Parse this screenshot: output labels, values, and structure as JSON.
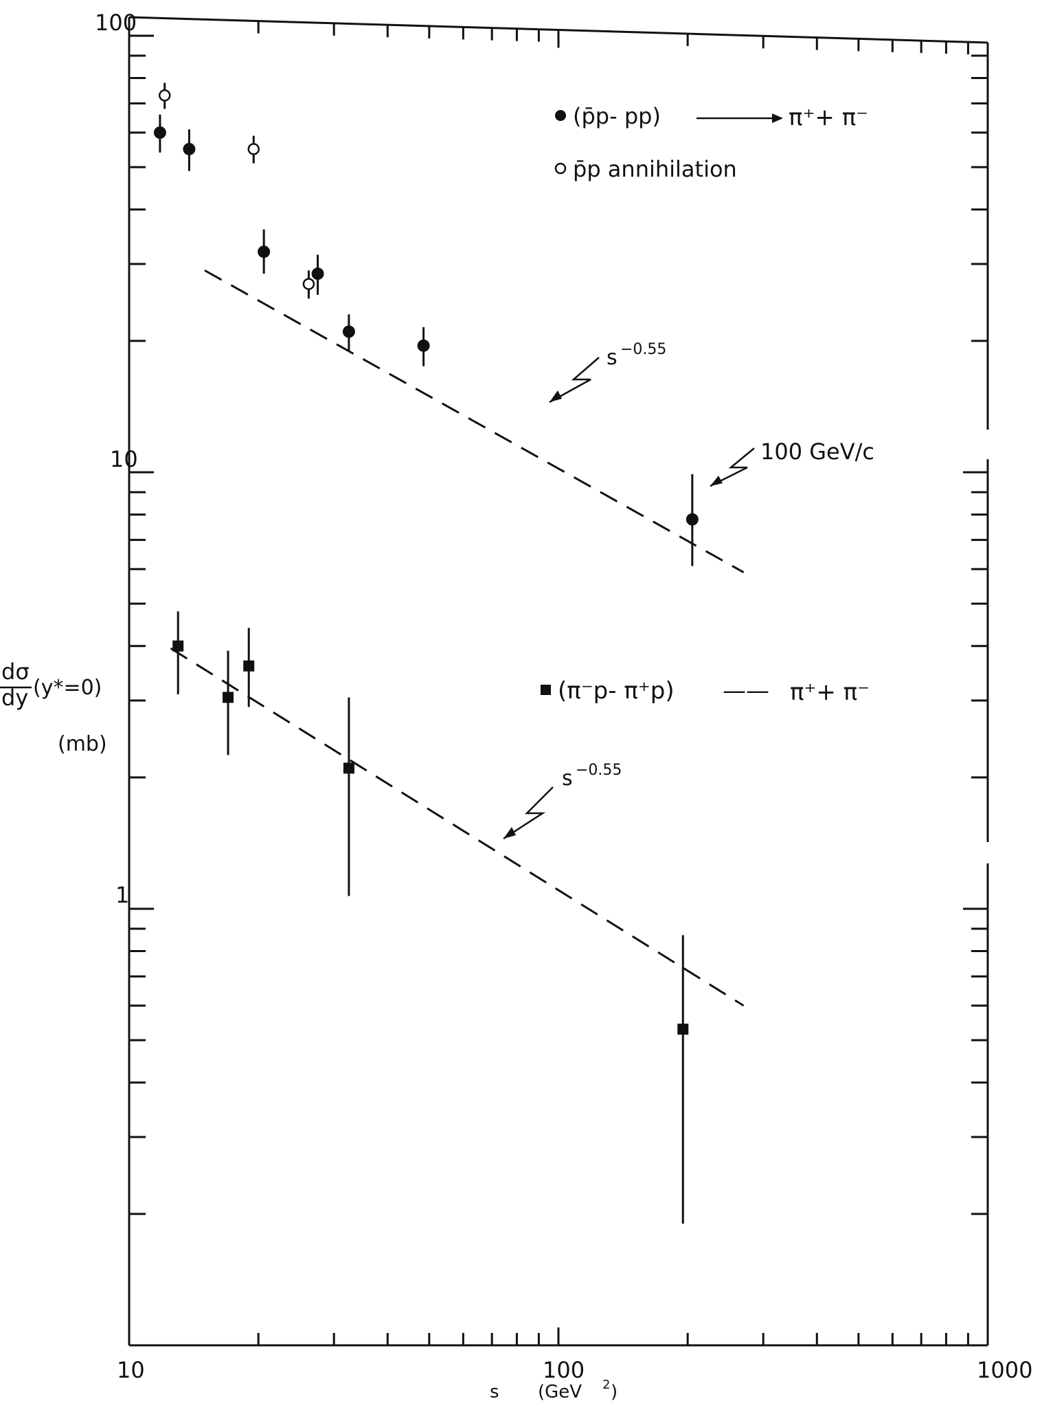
{
  "chart_data": {
    "type": "scatter",
    "xscale": "log",
    "yscale": "log",
    "xlim": [
      10,
      1000
    ],
    "ylim": [
      0.1,
      100
    ],
    "x_ticks": [
      "10",
      "100",
      "1000"
    ],
    "y_ticks": [
      "1",
      "10",
      "100"
    ],
    "xlabel": {
      "var": "s",
      "unit": "(GeV",
      "sup": "2",
      "close": ")"
    },
    "ylabel": {
      "num": "dσ",
      "den": "dy",
      "arg": "(y*=0)",
      "unit": "(mb)"
    },
    "colors": {
      "ink": "#111111",
      "background": "#ffffff"
    },
    "series": [
      {
        "name": "(p̄p- pp) ⟶ π⁺+ π⁻",
        "marker": "filled-circle",
        "points": [
          {
            "x": 11.8,
            "y": 60,
            "err": [
              54,
              66
            ]
          },
          {
            "x": 13.8,
            "y": 55,
            "err": [
              49,
              61
            ]
          },
          {
            "x": 20.6,
            "y": 32,
            "err": [
              28.5,
              36
            ]
          },
          {
            "x": 27.5,
            "y": 28.5,
            "err": [
              25.5,
              31.5
            ]
          },
          {
            "x": 32.5,
            "y": 21,
            "err": [
              19,
              23
            ]
          },
          {
            "x": 48.5,
            "y": 19.5,
            "err": [
              17.5,
              21.5
            ]
          },
          {
            "x": 205,
            "y": 7.8,
            "err": [
              6.1,
              9.9
            ]
          }
        ]
      },
      {
        "name": "p̄p  annihilation",
        "marker": "open-circle",
        "points": [
          {
            "x": 12.1,
            "y": 73,
            "err": [
              68,
              78
            ]
          },
          {
            "x": 19.5,
            "y": 55,
            "err": [
              51,
              59
            ]
          },
          {
            "x": 26.2,
            "y": 27,
            "err": [
              25,
              29
            ]
          }
        ]
      },
      {
        "name": "(π⁻p- π⁺p) ⟶ π⁺+ π⁻",
        "marker": "filled-square",
        "points": [
          {
            "x": 13,
            "y": 4.0,
            "err": [
              3.1,
              4.8
            ]
          },
          {
            "x": 17,
            "y": 3.05,
            "err": [
              2.25,
              3.9
            ]
          },
          {
            "x": 19,
            "y": 3.6,
            "err": [
              2.9,
              4.4
            ]
          },
          {
            "x": 32.5,
            "y": 2.1,
            "err": [
              1.07,
              3.05
            ]
          },
          {
            "x": 195,
            "y": 0.53,
            "err": [
              0.19,
              0.87
            ]
          }
        ]
      }
    ],
    "fit_lines": [
      {
        "x": [
          15,
          270
        ],
        "y": [
          29,
          5.9
        ],
        "style": "dashed"
      },
      {
        "x": [
          12.5,
          270
        ],
        "y": [
          3.95,
          0.6
        ],
        "style": "dashed"
      }
    ],
    "annotations": {
      "fit_upper": "s",
      "fit_upper_exp": "−0.55",
      "fit_lower": "s",
      "fit_lower_exp": "−0.55",
      "momentum": "100 GeV/c"
    },
    "legend": {
      "placement": "top-right and middle-right",
      "circles_filled": {
        "pre": "(p̄p- pp)",
        "arrow": "⟶",
        "post": "π⁺+ π⁻"
      },
      "circles_open": {
        "pre": "p̄p  annihilation"
      },
      "squares": {
        "pre": "(π⁻p- π⁺p)",
        "arrow": "——",
        "post": "π⁺+ π⁻"
      }
    }
  }
}
